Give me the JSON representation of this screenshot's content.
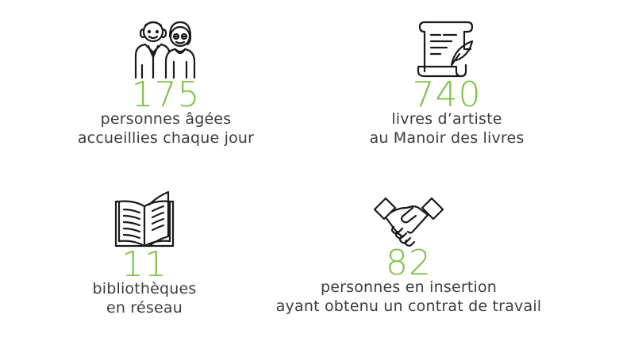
{
  "stats": [
    {
      "value": "175",
      "line1": "personnes âgées",
      "line2": "accueillies chaque jour",
      "icon": "elderly-couple-icon"
    },
    {
      "value": "740",
      "line1": "livres d’artiste",
      "line2": "au Manoir des livres",
      "icon": "scroll-quill-icon"
    },
    {
      "value": "11",
      "line1": "bibliothèques",
      "line2": "en réseau",
      "icon": "open-book-icon"
    },
    {
      "value": "82",
      "line1": "personnes en insertion",
      "line2": "ayant obtenu un contrat de travail",
      "icon": "handshake-icon"
    }
  ],
  "colors": {
    "accent": "#7dc242",
    "text": "#3d3d3d",
    "icon": "#1a1a1a"
  }
}
